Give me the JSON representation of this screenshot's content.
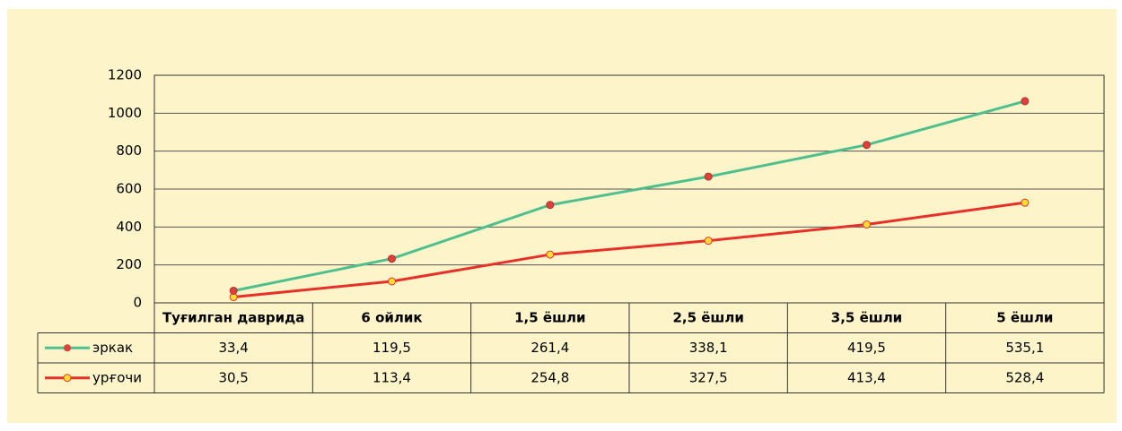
{
  "chart_data": {
    "type": "line",
    "stacked": true,
    "categories": [
      "Туғилган даврида",
      "6 ойлик",
      "1,5 ёшли",
      "2,5 ёшли",
      "3,5 ёшли",
      "5 ёшли"
    ],
    "series": [
      {
        "name": "эркак",
        "color": "#4fc08d",
        "marker_fill": "#e0403a",
        "values": [
          33.4,
          119.5,
          261.4,
          338.1,
          419.5,
          535.1
        ],
        "value_labels": [
          "33,4",
          "119,5",
          "261,4",
          "338,1",
          "419,5",
          "535,1"
        ]
      },
      {
        "name": "урғочи",
        "color": "#e8302a",
        "marker_fill": "#ffe030",
        "values": [
          30.5,
          113.4,
          254.8,
          327.5,
          413.4,
          528.4
        ],
        "value_labels": [
          "30,5",
          "113,4",
          "254,8",
          "327,5",
          "413,4",
          "528,4"
        ]
      }
    ],
    "ylim": [
      0,
      1200
    ],
    "yticks": [
      0,
      200,
      400,
      600,
      800,
      1000,
      1200
    ],
    "grid": true,
    "data_table": true
  }
}
